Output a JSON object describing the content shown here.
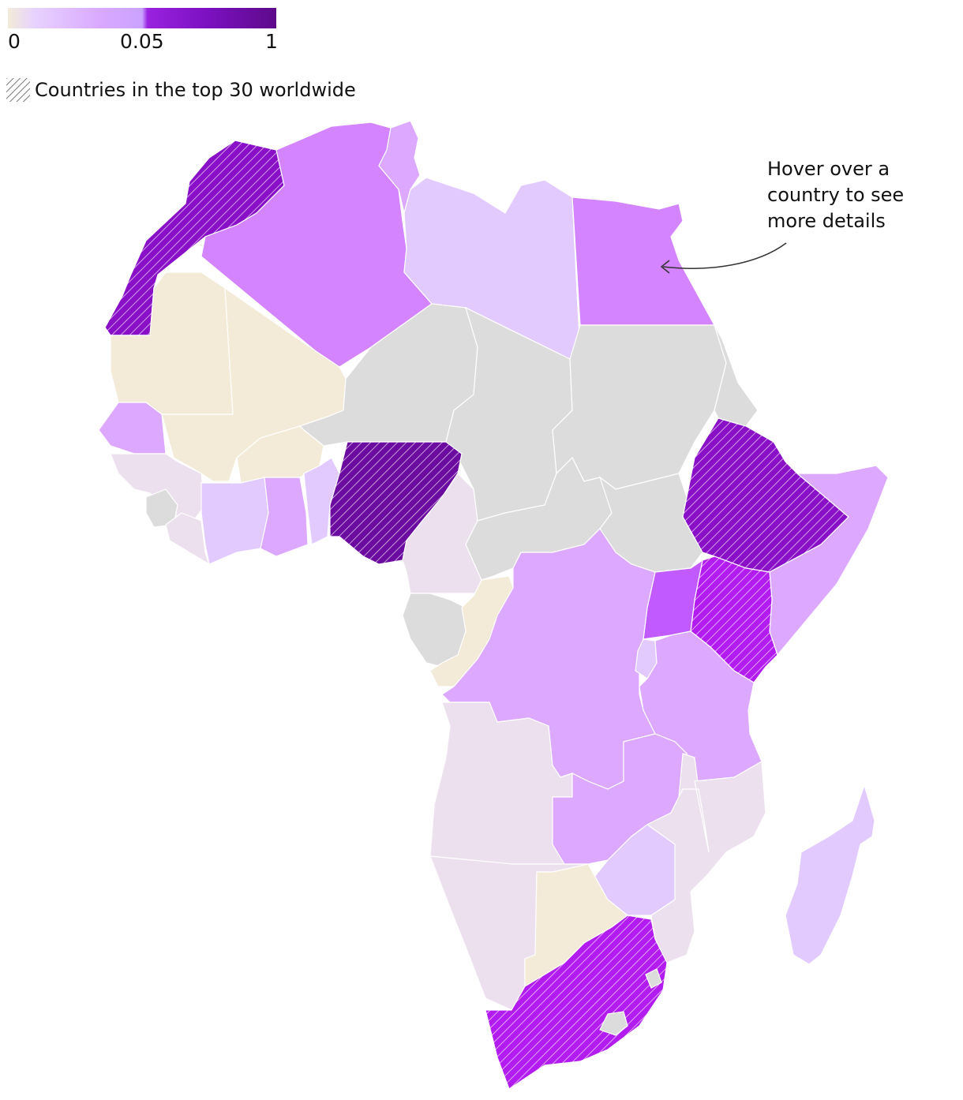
{
  "legend": {
    "ticks": [
      "0",
      "0.05",
      "1"
    ],
    "hatch_label": "Countries in the top 30 worldwide"
  },
  "annotation": {
    "lines": [
      "Hover over a",
      "country to see",
      "more details"
    ]
  },
  "colors": {
    "no_data": "#dcdcdc",
    "zero": "#f3ebd8",
    "very_low": "#ece0ee",
    "low": "#e2caff",
    "mid": "#dda8ff",
    "mid_high": "#d484ff",
    "high": "#c25bff",
    "very_high": "#b21cf0",
    "top": "#8a10c8",
    "darkest": "#6c0ba0",
    "hatch_stroke": "#ffffff"
  },
  "countries": [
    {
      "name": "Morocco",
      "color": "top",
      "top30": true
    },
    {
      "name": "Algeria",
      "color": "mid_high",
      "top30": false
    },
    {
      "name": "Tunisia",
      "color": "mid",
      "top30": false
    },
    {
      "name": "Libya",
      "color": "low",
      "top30": false
    },
    {
      "name": "Egypt",
      "color": "mid_high",
      "top30": false
    },
    {
      "name": "Mauritania",
      "color": "zero",
      "top30": false
    },
    {
      "name": "Mali",
      "color": "zero",
      "top30": false
    },
    {
      "name": "Niger",
      "color": "no_data",
      "top30": false
    },
    {
      "name": "Chad",
      "color": "no_data",
      "top30": false
    },
    {
      "name": "Sudan",
      "color": "no_data",
      "top30": false
    },
    {
      "name": "Eritrea",
      "color": "no_data",
      "top30": false
    },
    {
      "name": "Senegal",
      "color": "mid",
      "top30": false
    },
    {
      "name": "Guinea",
      "color": "very_low",
      "top30": false
    },
    {
      "name": "Sierra Leone",
      "color": "no_data",
      "top30": false
    },
    {
      "name": "Liberia",
      "color": "very_low",
      "top30": false
    },
    {
      "name": "Burkina Faso",
      "color": "zero",
      "top30": false
    },
    {
      "name": "Cote d'Ivoire",
      "color": "low",
      "top30": false
    },
    {
      "name": "Ghana",
      "color": "mid",
      "top30": false
    },
    {
      "name": "Togo-Benin",
      "color": "low",
      "top30": false
    },
    {
      "name": "Nigeria",
      "color": "darkest",
      "top30": true
    },
    {
      "name": "Cameroon",
      "color": "very_low",
      "top30": false
    },
    {
      "name": "Central African Republic",
      "color": "no_data",
      "top30": false
    },
    {
      "name": "South Sudan",
      "color": "no_data",
      "top30": false
    },
    {
      "name": "Ethiopia",
      "color": "top",
      "top30": true
    },
    {
      "name": "Somalia",
      "color": "mid",
      "top30": false
    },
    {
      "name": "Kenya",
      "color": "very_high",
      "top30": true
    },
    {
      "name": "Uganda",
      "color": "high",
      "top30": false
    },
    {
      "name": "Gabon",
      "color": "no_data",
      "top30": false
    },
    {
      "name": "Congo",
      "color": "zero",
      "top30": false
    },
    {
      "name": "DR Congo",
      "color": "mid",
      "top30": false
    },
    {
      "name": "Rwanda-Burundi",
      "color": "low",
      "top30": false
    },
    {
      "name": "Tanzania",
      "color": "mid",
      "top30": false
    },
    {
      "name": "Angola",
      "color": "very_low",
      "top30": false
    },
    {
      "name": "Zambia",
      "color": "mid",
      "top30": false
    },
    {
      "name": "Malawi",
      "color": "very_low",
      "top30": false
    },
    {
      "name": "Mozambique",
      "color": "very_low",
      "top30": false
    },
    {
      "name": "Zimbabwe",
      "color": "low",
      "top30": false
    },
    {
      "name": "Namibia",
      "color": "very_low",
      "top30": false
    },
    {
      "name": "Botswana",
      "color": "zero",
      "top30": false
    },
    {
      "name": "South Africa",
      "color": "very_high",
      "top30": true
    },
    {
      "name": "Lesotho",
      "color": "no_data",
      "top30": false
    },
    {
      "name": "Eswatini",
      "color": "no_data",
      "top30": false
    },
    {
      "name": "Madagascar",
      "color": "low",
      "top30": false
    }
  ]
}
